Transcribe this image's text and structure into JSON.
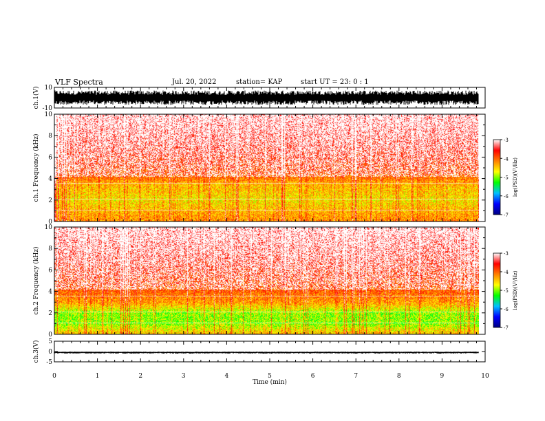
{
  "header": {
    "title": "VLF Spectra",
    "date": "Jul. 20, 2022",
    "station": "station= KAP",
    "start": "start UT = 23: 0 : 1"
  },
  "chart_data": [
    {
      "type": "line",
      "name": "ch1-waveform",
      "ylabel": "ch.1(V)",
      "ylim": [
        -10,
        10
      ],
      "yticks": [
        "10",
        "-10"
      ],
      "xlim": [
        0,
        10
      ],
      "trace": {
        "center": 0,
        "amplitude_low": -7,
        "amplitude_high": 7,
        "end_time": 9.85
      }
    },
    {
      "type": "heatmap",
      "name": "ch1-spectrogram",
      "ylabel": "ch.1 Frequency (kHz)",
      "ylim": [
        0,
        10
      ],
      "yticks": [
        "0",
        "2",
        "4",
        "6",
        "8",
        "10"
      ],
      "xlim": [
        0,
        10
      ],
      "data_end_time": 9.85,
      "intensity_profile": [
        {
          "freq_khz": 0.0,
          "log_psd": -4.2
        },
        {
          "freq_khz": 1.0,
          "log_psd": -4.4
        },
        {
          "freq_khz": 2.0,
          "log_psd": -4.6
        },
        {
          "freq_khz": 3.5,
          "log_psd": -4.4
        },
        {
          "freq_khz": 4.5,
          "log_psd": -3.9
        },
        {
          "freq_khz": 7.0,
          "log_psd": -3.5
        },
        {
          "freq_khz": 10.0,
          "log_psd": -3.2
        }
      ],
      "colorbar": {
        "label": "log(PSD)(V²/Hz)",
        "range": [
          -7,
          -3
        ],
        "ticks": [
          "-3",
          "-4",
          "-5",
          "-6",
          "-7"
        ],
        "colors": [
          "#000080",
          "#0000ff",
          "#00c0ff",
          "#00ff00",
          "#ffff00",
          "#ff8000",
          "#ff0000",
          "#ffffff"
        ]
      }
    },
    {
      "type": "heatmap",
      "name": "ch2-spectrogram",
      "ylabel": "ch.2 Frequency (kHz)",
      "ylim": [
        0,
        10
      ],
      "yticks": [
        "0",
        "2",
        "4",
        "6",
        "8",
        "10"
      ],
      "xlim": [
        0,
        10
      ],
      "data_end_time": 9.85,
      "intensity_profile": [
        {
          "freq_khz": 0.0,
          "log_psd": -4.4
        },
        {
          "freq_khz": 1.0,
          "log_psd": -5.0
        },
        {
          "freq_khz": 2.0,
          "log_psd": -5.0
        },
        {
          "freq_khz": 3.0,
          "log_psd": -4.3
        },
        {
          "freq_khz": 4.5,
          "log_psd": -3.9
        },
        {
          "freq_khz": 7.0,
          "log_psd": -3.5
        },
        {
          "freq_khz": 10.0,
          "log_psd": -3.2
        }
      ],
      "colorbar": {
        "label": "log(PSD)(V²/Hz)",
        "range": [
          -7,
          -3
        ],
        "ticks": [
          "-3",
          "-4",
          "-5",
          "-6",
          "-7"
        ],
        "colors": [
          "#000080",
          "#0000ff",
          "#00c0ff",
          "#00ff00",
          "#ffff00",
          "#ff8000",
          "#ff0000",
          "#ffffff"
        ]
      }
    },
    {
      "type": "line",
      "name": "ch3-waveform",
      "ylabel": "ch.3(V)",
      "ylim": [
        -5,
        5
      ],
      "yticks": [
        "5",
        "0",
        "-5"
      ],
      "xlim": [
        0,
        10
      ],
      "trace": {
        "center": -0.3,
        "amplitude_low": -0.7,
        "amplitude_high": 0.2,
        "end_time": 9.85
      }
    }
  ],
  "xaxis": {
    "xlabel": "Time (min)",
    "ticks": [
      "0",
      "1",
      "2",
      "3",
      "4",
      "5",
      "6",
      "7",
      "8",
      "9",
      "10"
    ]
  }
}
